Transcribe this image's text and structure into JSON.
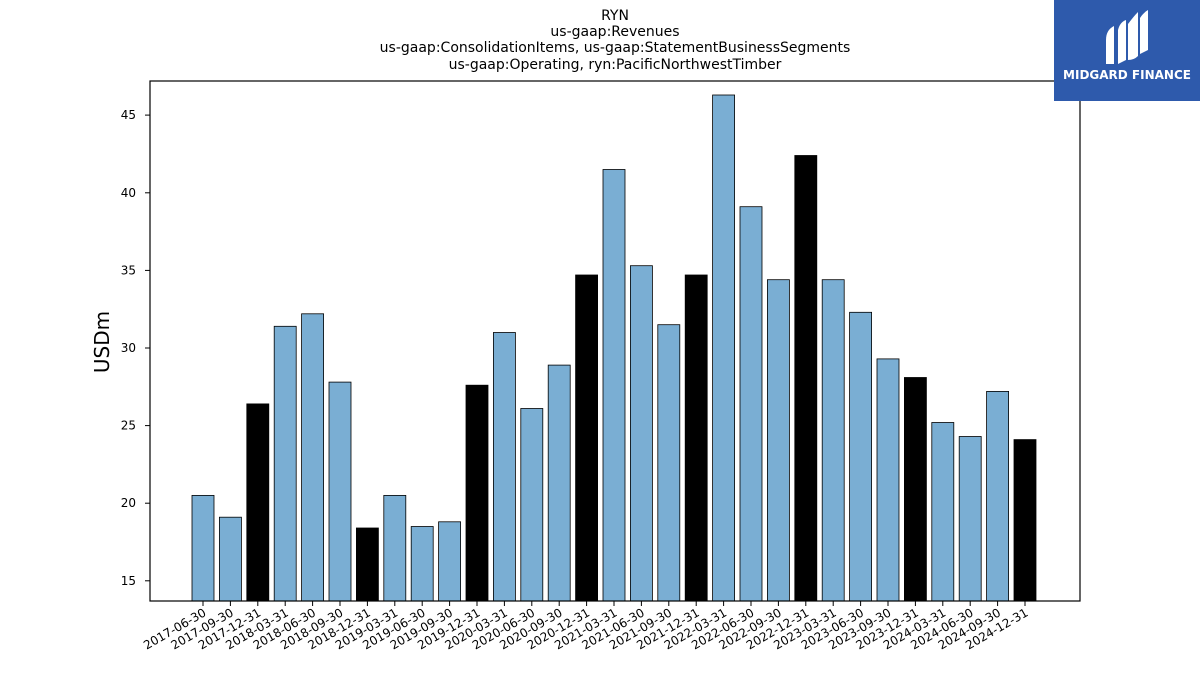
{
  "chart_data": {
    "type": "bar",
    "title_lines": [
      "RYN",
      "us-gaap:Revenues",
      "us-gaap:ConsolidationItems, us-gaap:StatementBusinessSegments",
      "us-gaap:Operating, ryn:PacificNorthwestTimber"
    ],
    "xlabel": "",
    "ylabel": "USDm",
    "ylim": [
      13.7,
      47.2
    ],
    "yticks": [
      15,
      20,
      25,
      30,
      35,
      40,
      45
    ],
    "categories": [
      "2017-06-30",
      "2017-09-30",
      "2017-12-31",
      "2018-03-31",
      "2018-06-30",
      "2018-09-30",
      "2018-12-31",
      "2019-03-31",
      "2019-06-30",
      "2019-09-30",
      "2019-12-31",
      "2020-03-31",
      "2020-06-30",
      "2020-09-30",
      "2020-12-31",
      "2021-03-31",
      "2021-06-30",
      "2021-09-30",
      "2021-12-31",
      "2022-03-31",
      "2022-06-30",
      "2022-09-30",
      "2022-12-31",
      "2023-03-31",
      "2023-06-30",
      "2023-09-30",
      "2023-12-31",
      "2024-03-31",
      "2024-06-30",
      "2024-09-30",
      "2024-12-31"
    ],
    "values": [
      20.5,
      19.1,
      26.4,
      31.4,
      32.2,
      27.8,
      18.4,
      20.5,
      18.5,
      18.8,
      27.6,
      31.0,
      26.1,
      28.9,
      34.7,
      41.5,
      35.3,
      31.5,
      34.7,
      46.3,
      39.1,
      34.4,
      42.4,
      34.4,
      32.3,
      29.3,
      28.1,
      25.2,
      24.3,
      27.2,
      24.1
    ],
    "colors": {
      "quarter": "#7aaed3",
      "year_end": "#000000",
      "edge": "#000000"
    },
    "grid": false,
    "legend": "none"
  },
  "logo": {
    "name": "MIDGARD FINANCE",
    "bg_color": "#2e5aac"
  }
}
